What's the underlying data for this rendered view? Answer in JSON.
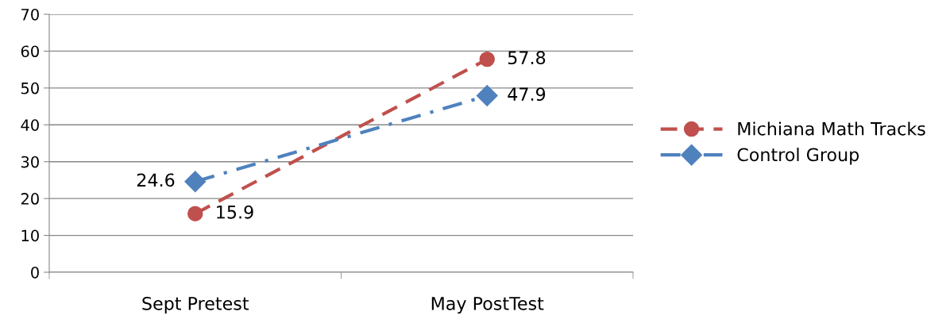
{
  "chart_data": {
    "type": "line",
    "categories": [
      "Sept Pretest",
      "May PostTest"
    ],
    "series": [
      {
        "name": "Michiana Math Tracks",
        "color": "#c0504d",
        "values": [
          15.9,
          57.8
        ],
        "marker": "circle",
        "line_style": "dashed"
      },
      {
        "name": "Control Group",
        "color": "#4f81bd",
        "values": [
          24.6,
          47.9
        ],
        "marker": "diamond",
        "line_style": "dashdot"
      }
    ],
    "ylim": [
      0,
      70
    ],
    "yticks": [
      0,
      10,
      20,
      30,
      40,
      50,
      60,
      70
    ],
    "grid": "y",
    "legend": "right",
    "data_labels": true
  }
}
